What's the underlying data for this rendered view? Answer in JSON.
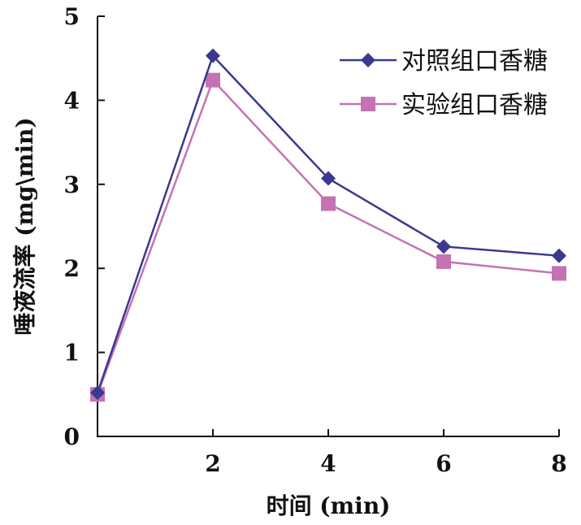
{
  "chart_data": {
    "type": "line",
    "title": "",
    "xlabel": "时间 (min)",
    "ylabel": "唾液流率 (mg\\min)",
    "xlim": [
      0,
      8
    ],
    "ylim": [
      0,
      5
    ],
    "x_ticks": [
      2,
      4,
      6,
      8
    ],
    "y_ticks": [
      0,
      1,
      2,
      3,
      4,
      5
    ],
    "grid": false,
    "legend_position": "top-right",
    "series": [
      {
        "name": "对照组口香糖",
        "color": "#3a3890",
        "marker": "diamond",
        "x": [
          0,
          2,
          4,
          6,
          8
        ],
        "y": [
          0.52,
          4.53,
          3.07,
          2.26,
          2.15
        ]
      },
      {
        "name": "实验组口香糖",
        "color": "#c472b4",
        "marker": "square",
        "x": [
          0,
          2,
          4,
          6,
          8
        ],
        "y": [
          0.5,
          4.24,
          2.77,
          2.08,
          1.94
        ]
      }
    ]
  }
}
